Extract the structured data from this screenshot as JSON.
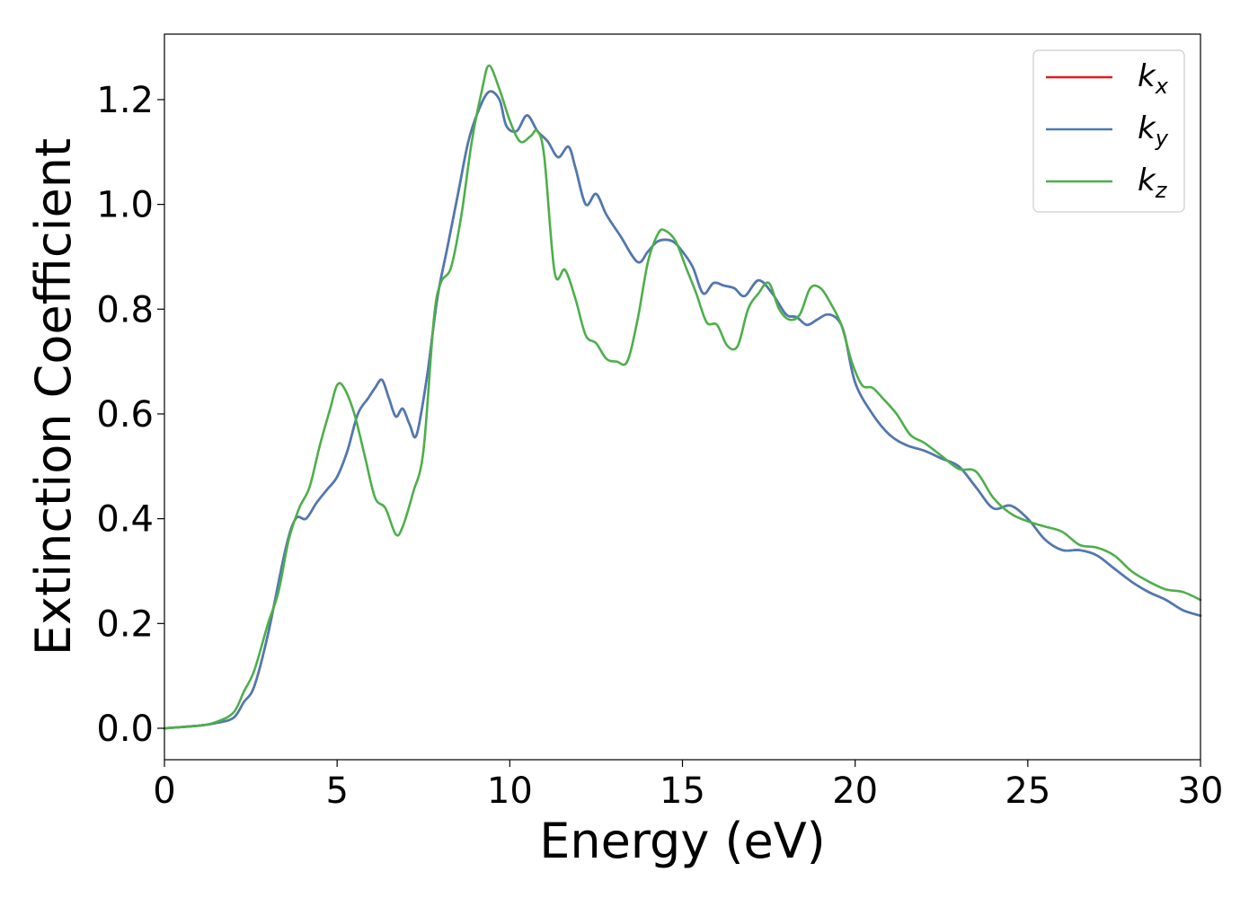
{
  "chart_data": {
    "type": "line",
    "title": "",
    "xlabel": "Energy (eV)",
    "ylabel": "Extinction Coefficient",
    "xlim": [
      0,
      30
    ],
    "ylim": [
      -0.06,
      1.325
    ],
    "xticks": [
      0,
      5,
      10,
      15,
      20,
      25,
      30
    ],
    "xtick_labels": [
      "0",
      "5",
      "10",
      "15",
      "20",
      "25",
      "30"
    ],
    "yticks": [
      0.0,
      0.2,
      0.4,
      0.6,
      0.8,
      1.0,
      1.2
    ],
    "ytick_labels": [
      "0.0",
      "0.2",
      "0.4",
      "0.6",
      "0.8",
      "1.0",
      "1.2"
    ],
    "grid": false,
    "legend": {
      "placement": "top-right"
    },
    "series": [
      {
        "name": "k",
        "subscript": "x",
        "color": "#e41a1c",
        "x": [
          0,
          1,
          1.5,
          2,
          2.3,
          2.6,
          3,
          3.5,
          3.8,
          4.1,
          4.4,
          4.7,
          5,
          5.3,
          5.6,
          5.9,
          6.1,
          6.3,
          6.5,
          6.7,
          6.9,
          7.1,
          7.3,
          7.6,
          7.9,
          8.2,
          8.5,
          8.8,
          9.1,
          9.4,
          9.7,
          9.9,
          10.2,
          10.5,
          10.8,
          11.1,
          11.4,
          11.7,
          11.9,
          12.2,
          12.5,
          12.8,
          13.2,
          13.7,
          14.0,
          14.3,
          14.7,
          15.0,
          15.3,
          15.6,
          15.9,
          16.2,
          16.5,
          16.8,
          17.2,
          17.6,
          18.0,
          18.3,
          18.6,
          18.9,
          19.2,
          19.5,
          19.7,
          20.0,
          20.5,
          21.0,
          21.5,
          22.0,
          22.5,
          23.0,
          23.5,
          24.0,
          24.5,
          25.0,
          25.5,
          26.0,
          26.5,
          27.0,
          27.5,
          28.0,
          28.5,
          29.0,
          29.5,
          30.0
        ],
        "values": [
          0.0,
          0.005,
          0.01,
          0.02,
          0.05,
          0.08,
          0.18,
          0.34,
          0.4,
          0.4,
          0.43,
          0.455,
          0.48,
          0.53,
          0.6,
          0.63,
          0.65,
          0.665,
          0.63,
          0.595,
          0.61,
          0.58,
          0.56,
          0.67,
          0.82,
          0.92,
          1.02,
          1.12,
          1.18,
          1.215,
          1.2,
          1.15,
          1.14,
          1.17,
          1.14,
          1.12,
          1.09,
          1.11,
          1.07,
          1.0,
          1.02,
          0.98,
          0.94,
          0.89,
          0.91,
          0.93,
          0.93,
          0.91,
          0.88,
          0.83,
          0.85,
          0.845,
          0.84,
          0.825,
          0.855,
          0.83,
          0.79,
          0.785,
          0.77,
          0.78,
          0.79,
          0.78,
          0.75,
          0.66,
          0.6,
          0.56,
          0.54,
          0.53,
          0.515,
          0.5,
          0.46,
          0.42,
          0.425,
          0.4,
          0.36,
          0.34,
          0.34,
          0.33,
          0.305,
          0.28,
          0.26,
          0.245,
          0.225,
          0.215
        ]
      },
      {
        "name": "k",
        "subscript": "y",
        "color": "#4a7bb5",
        "x": [
          0,
          1,
          1.5,
          2,
          2.3,
          2.6,
          3,
          3.5,
          3.8,
          4.1,
          4.4,
          4.7,
          5,
          5.3,
          5.6,
          5.9,
          6.1,
          6.3,
          6.5,
          6.7,
          6.9,
          7.1,
          7.3,
          7.6,
          7.9,
          8.2,
          8.5,
          8.8,
          9.1,
          9.4,
          9.7,
          9.9,
          10.2,
          10.5,
          10.8,
          11.1,
          11.4,
          11.7,
          11.9,
          12.2,
          12.5,
          12.8,
          13.2,
          13.7,
          14.0,
          14.3,
          14.7,
          15.0,
          15.3,
          15.6,
          15.9,
          16.2,
          16.5,
          16.8,
          17.2,
          17.6,
          18.0,
          18.3,
          18.6,
          18.9,
          19.2,
          19.5,
          19.7,
          20.0,
          20.5,
          21.0,
          21.5,
          22.0,
          22.5,
          23.0,
          23.5,
          24.0,
          24.5,
          25.0,
          25.5,
          26.0,
          26.5,
          27.0,
          27.5,
          28.0,
          28.5,
          29.0,
          29.5,
          30.0
        ],
        "values": [
          0.0,
          0.005,
          0.01,
          0.02,
          0.05,
          0.08,
          0.18,
          0.34,
          0.4,
          0.4,
          0.43,
          0.455,
          0.48,
          0.53,
          0.6,
          0.63,
          0.65,
          0.665,
          0.63,
          0.595,
          0.61,
          0.58,
          0.56,
          0.67,
          0.82,
          0.92,
          1.02,
          1.12,
          1.18,
          1.215,
          1.2,
          1.15,
          1.14,
          1.17,
          1.14,
          1.12,
          1.09,
          1.11,
          1.07,
          1.0,
          1.02,
          0.98,
          0.94,
          0.89,
          0.91,
          0.93,
          0.93,
          0.91,
          0.88,
          0.83,
          0.85,
          0.845,
          0.84,
          0.825,
          0.855,
          0.83,
          0.79,
          0.785,
          0.77,
          0.78,
          0.79,
          0.78,
          0.75,
          0.66,
          0.6,
          0.56,
          0.54,
          0.53,
          0.515,
          0.5,
          0.46,
          0.42,
          0.425,
          0.4,
          0.36,
          0.34,
          0.34,
          0.33,
          0.305,
          0.28,
          0.26,
          0.245,
          0.225,
          0.215
        ]
      },
      {
        "name": "k",
        "subscript": "z",
        "color": "#4daf4a",
        "x": [
          0,
          1,
          1.5,
          2,
          2.3,
          2.6,
          3,
          3.3,
          3.6,
          3.9,
          4.2,
          4.5,
          4.8,
          5.0,
          5.2,
          5.5,
          5.8,
          6.1,
          6.4,
          6.7,
          6.9,
          7.2,
          7.5,
          7.8,
          8.0,
          8.3,
          8.6,
          8.9,
          9.2,
          9.4,
          9.7,
          10.0,
          10.3,
          10.6,
          10.8,
          11.0,
          11.3,
          11.6,
          11.9,
          12.2,
          12.5,
          12.8,
          13.1,
          13.4,
          13.7,
          14.0,
          14.3,
          14.5,
          14.8,
          15.1,
          15.4,
          15.7,
          16.0,
          16.3,
          16.6,
          16.9,
          17.2,
          17.5,
          17.8,
          18.1,
          18.4,
          18.7,
          19.0,
          19.3,
          19.6,
          19.9,
          20.2,
          20.5,
          20.8,
          21.2,
          21.6,
          22.0,
          22.5,
          23.0,
          23.5,
          24.0,
          24.5,
          25.0,
          25.5,
          26.0,
          26.5,
          27.0,
          27.5,
          28.0,
          28.5,
          29.0,
          29.5,
          30.0
        ],
        "values": [
          0.0,
          0.005,
          0.012,
          0.03,
          0.07,
          0.11,
          0.2,
          0.26,
          0.36,
          0.42,
          0.46,
          0.54,
          0.61,
          0.655,
          0.65,
          0.6,
          0.52,
          0.44,
          0.42,
          0.37,
          0.385,
          0.45,
          0.53,
          0.78,
          0.85,
          0.88,
          0.98,
          1.12,
          1.22,
          1.265,
          1.22,
          1.16,
          1.12,
          1.13,
          1.14,
          1.09,
          0.87,
          0.875,
          0.82,
          0.75,
          0.735,
          0.705,
          0.7,
          0.7,
          0.78,
          0.89,
          0.945,
          0.95,
          0.93,
          0.88,
          0.83,
          0.775,
          0.77,
          0.73,
          0.73,
          0.8,
          0.83,
          0.85,
          0.8,
          0.78,
          0.79,
          0.84,
          0.84,
          0.81,
          0.77,
          0.7,
          0.655,
          0.65,
          0.63,
          0.6,
          0.56,
          0.545,
          0.52,
          0.495,
          0.49,
          0.44,
          0.41,
          0.395,
          0.385,
          0.375,
          0.35,
          0.345,
          0.33,
          0.3,
          0.28,
          0.265,
          0.26,
          0.245
        ]
      }
    ]
  }
}
